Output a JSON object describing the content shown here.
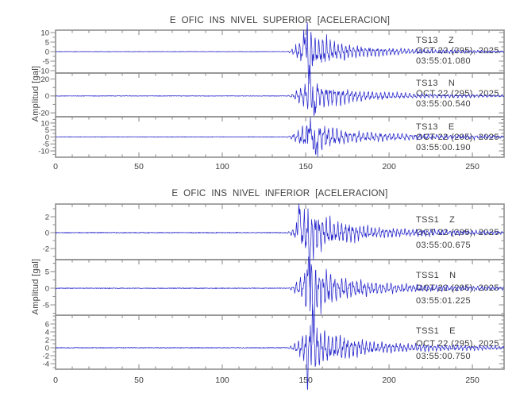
{
  "chart_data": {
    "type": "line",
    "kind": "seismogram-acceleration-multitrace",
    "ylabel": "Amplitud [gal]",
    "xlim": [
      0,
      269
    ],
    "x_major_ticks": [
      0,
      50,
      100,
      150,
      200,
      250
    ],
    "x_minor_step": 10,
    "trace_color": "#2828cc",
    "frame_color": "#8f8f8f",
    "text_color": "#3c3c3c",
    "panels": [
      {
        "title": "E OFIC INS NIVEL SUPERIOR [ACELERACION]",
        "traces": [
          {
            "station": "TS13",
            "component": "Z",
            "date": "OCT 22 (295), 2025",
            "time": "03:55:01.080",
            "ylim": [
              -11.25,
              11.25
            ],
            "yticks": [
              10,
              5,
              0,
              -5,
              -10
            ],
            "y_minor_step": 2.5,
            "quiet_noise": 0.12,
            "onset": 138,
            "peak_x": 151,
            "peak_amp": 10.5,
            "coda": 0.5,
            "spikes": [
              {
                "x": 149.5,
                "a": 11.5
              },
              {
                "x": 152,
                "a": -13.5
              }
            ],
            "seed": 11
          },
          {
            "station": "TS13",
            "component": "N",
            "date": "OCT 22 (295), 2025",
            "time": "03:55:00.540",
            "ylim": [
              -24.5,
              27
            ],
            "yticks": [
              20,
              0,
              -20
            ],
            "y_minor_step": 10,
            "quiet_noise": 0.3,
            "onset": 138,
            "peak_x": 152,
            "peak_amp": 20,
            "coda": 1.3,
            "spikes": [
              {
                "x": 152.5,
                "a": 30
              },
              {
                "x": 155,
                "a": -28
              }
            ],
            "seed": 22
          },
          {
            "station": "TS13",
            "component": "E",
            "date": "OCT 22 (295), 2025",
            "time": "03:55:00.190",
            "ylim": [
              -14.5,
              14.5
            ],
            "yticks": [
              10,
              5,
              0,
              -5,
              -10
            ],
            "y_minor_step": 2.5,
            "quiet_noise": 0.2,
            "onset": 137,
            "peak_x": 152,
            "peak_amp": 11.5,
            "coda": 1.2,
            "spikes": [
              {
                "x": 152,
                "a": 13.5
              },
              {
                "x": 156,
                "a": -16
              }
            ],
            "seed": 33
          }
        ]
      },
      {
        "title": "E OFIC INS NIVEL INFERIOR [ACELERACION]",
        "traces": [
          {
            "station": "TSS1",
            "component": "Z",
            "date": "OCT 22 (295), 2025",
            "time": "03:55:00.675",
            "ylim": [
              -3.4,
              3.6
            ],
            "yticks": [
              2,
              0,
              -2
            ],
            "y_minor_step": 1,
            "quiet_noise": 0.05,
            "onset": 138,
            "peak_x": 150,
            "peak_amp": 3.0,
            "coda": 0.22,
            "spikes": [
              {
                "x": 146,
                "a": 4.2
              },
              {
                "x": 152.5,
                "a": -4.6
              }
            ],
            "seed": 44
          },
          {
            "station": "TSS1",
            "component": "N",
            "date": "OCT 22 (295), 2025",
            "time": "03:55:01.225",
            "ylim": [
              -8.1,
              8.6
            ],
            "yticks": [
              5,
              0,
              -5
            ],
            "y_minor_step": 2.5,
            "quiet_noise": 0.12,
            "onset": 139,
            "peak_x": 152,
            "peak_amp": 7.5,
            "coda": 0.5,
            "spikes": [
              {
                "x": 152,
                "a": 9.8
              },
              {
                "x": 155,
                "a": -13
              }
            ],
            "seed": 55
          },
          {
            "station": "TSS1",
            "component": "E",
            "date": "OCT 22 (295), 2025",
            "time": "03:55:00.750",
            "ylim": [
              -5.4,
              8.2
            ],
            "yticks": [
              6,
              4,
              2,
              0,
              -2,
              -4
            ],
            "y_minor_step": 1,
            "quiet_noise": 0.09,
            "onset": 138,
            "peak_x": 153,
            "peak_amp": 6.2,
            "coda": 0.45,
            "spikes": [
              {
                "x": 154,
                "a": 9.4
              },
              {
                "x": 151,
                "a": -6.0
              }
            ],
            "seed": 66
          }
        ]
      }
    ]
  }
}
